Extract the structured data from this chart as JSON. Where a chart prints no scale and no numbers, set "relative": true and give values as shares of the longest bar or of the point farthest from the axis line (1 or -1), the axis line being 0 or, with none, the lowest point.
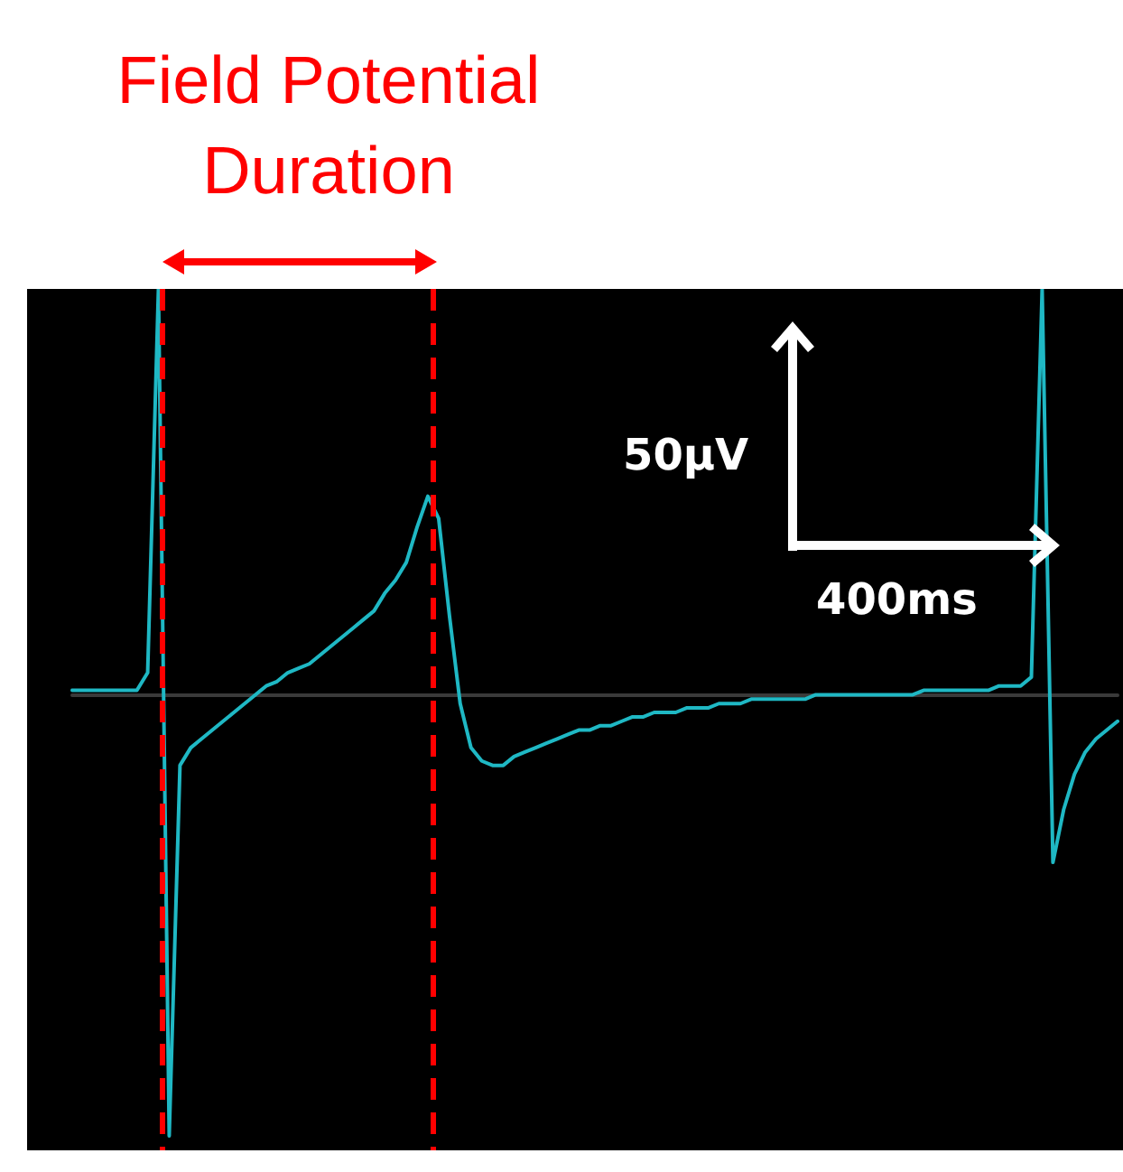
{
  "chart_data": {
    "type": "line",
    "relative": true,
    "marker": "none",
    "line_style": "solid",
    "annotations": [
      "Field Potential Duration",
      "50μV",
      "400ms"
    ],
    "categories": [
      null,
      null,
      null,
      null,
      null,
      null,
      null,
      null,
      null,
      null,
      null,
      null,
      null,
      null,
      null,
      null,
      null,
      null,
      null,
      null,
      null,
      null,
      null,
      null,
      null,
      null,
      null,
      null,
      null,
      null,
      null,
      null,
      null,
      null,
      null,
      null,
      null,
      null,
      null,
      null,
      null,
      null,
      null,
      null,
      null,
      null,
      null,
      null,
      null,
      null,
      null,
      null,
      null,
      null,
      null,
      null,
      null,
      null,
      null,
      null,
      null,
      null,
      null,
      null,
      null,
      null,
      null,
      null,
      null,
      null,
      null,
      null,
      null,
      null,
      null,
      null,
      null,
      null,
      null,
      null,
      null,
      null,
      null,
      null,
      null,
      null,
      null,
      null,
      null,
      null,
      null,
      null,
      null,
      null,
      null,
      null,
      null,
      null
    ],
    "series": [
      {
        "color": "#1fb8c4",
        "values": [
          0.01,
          0.01,
          0.01,
          0.01,
          0.01,
          0.01,
          0.01,
          0.05,
          0.92,
          -1,
          -0.16,
          -0.12,
          -0.1,
          -0.08,
          -0.06,
          -0.04,
          -0.02,
          0,
          0.02,
          0.03,
          0.05,
          0.06,
          0.07,
          0.09,
          0.11,
          0.13,
          0.15,
          0.17,
          0.19,
          0.23,
          0.26,
          0.3,
          0.38,
          0.45,
          0.4,
          0.18,
          -0.02,
          -0.12,
          -0.15,
          -0.16,
          -0.16,
          -0.14,
          -0.13,
          -0.12,
          -0.11,
          -0.1,
          -0.09,
          -0.08,
          -0.08,
          -0.07,
          -0.07,
          -0.06,
          -0.05,
          -0.05,
          -0.04,
          -0.04,
          -0.04,
          -0.03,
          -0.03,
          -0.03,
          -0.02,
          -0.02,
          -0.02,
          -0.01,
          -0.01,
          -0.01,
          -0.01,
          -0.01,
          -0.01,
          0,
          0,
          0,
          0,
          0,
          0,
          0,
          0,
          0,
          0,
          0.01,
          0.01,
          0.01,
          0.01,
          0.01,
          0.01,
          0.01,
          0.02,
          0.02,
          0.02,
          0.04,
          0.92,
          -0.38,
          -0.26,
          -0.18,
          -0.13,
          -0.1,
          -0.08,
          -0.06
        ]
      }
    ]
  }
}
